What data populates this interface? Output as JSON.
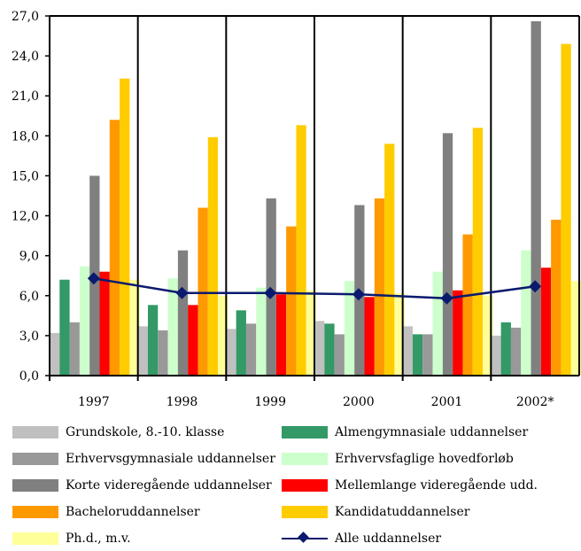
{
  "chart_data": {
    "type": "bar",
    "title": "",
    "xlabel": "",
    "ylabel": "",
    "categories": [
      "1997",
      "1998",
      "1999",
      "2000",
      "2001",
      "2002*"
    ],
    "ylim": [
      0,
      27
    ],
    "yticks": [
      "0,0",
      "3,0",
      "6,0",
      "9,0",
      "12,0",
      "15,0",
      "18,0",
      "21,0",
      "24,0",
      "27,0"
    ],
    "ytick_values": [
      0,
      3,
      6,
      9,
      12,
      15,
      18,
      21,
      24,
      27
    ],
    "grid": "vertical-category-lines",
    "legend_position": "bottom",
    "series": [
      {
        "name": "Grundskole, 8.-10. klasse",
        "color": "#c0c0c0",
        "values": [
          3.2,
          3.7,
          3.5,
          4.1,
          3.7,
          3.0
        ]
      },
      {
        "name": "Almengymnasiale uddannelser",
        "color": "#339966",
        "values": [
          7.2,
          5.3,
          4.9,
          3.9,
          3.1,
          4.0
        ]
      },
      {
        "name": "Erhvervsgymnasiale uddannelser",
        "color": "#999999",
        "values": [
          4.0,
          3.4,
          3.9,
          3.1,
          3.1,
          3.6
        ]
      },
      {
        "name": "Erhvervsfaglige hovedforløb",
        "color": "#ccffcc",
        "values": [
          8.2,
          7.3,
          6.6,
          7.1,
          7.8,
          9.4
        ]
      },
      {
        "name": "Korte videregående uddannelser",
        "color": "#808080",
        "values": [
          15.0,
          9.4,
          13.3,
          12.8,
          18.2,
          26.6
        ]
      },
      {
        "name": "Mellemlange videregående udd.",
        "color": "#ff0000",
        "values": [
          7.8,
          5.3,
          6.1,
          5.9,
          6.4,
          8.1
        ]
      },
      {
        "name": "Bacheloruddannelser",
        "color": "#ff9900",
        "values": [
          19.2,
          12.6,
          11.2,
          13.3,
          10.6,
          11.7
        ]
      },
      {
        "name": "Kandidatuddannelser",
        "color": "#ffcc00",
        "values": [
          22.3,
          17.9,
          18.8,
          17.4,
          18.6,
          24.9
        ]
      },
      {
        "name": "Ph.d., m.v.",
        "color": "#ffff99",
        "values": [
          7.2,
          6.0,
          6.4,
          6.2,
          6.0,
          7.1
        ]
      }
    ],
    "line_series": {
      "name": "Alle uddannelser",
      "color": "#0a1a6e",
      "values": [
        7.3,
        6.2,
        6.2,
        6.1,
        5.8,
        6.7
      ]
    }
  }
}
